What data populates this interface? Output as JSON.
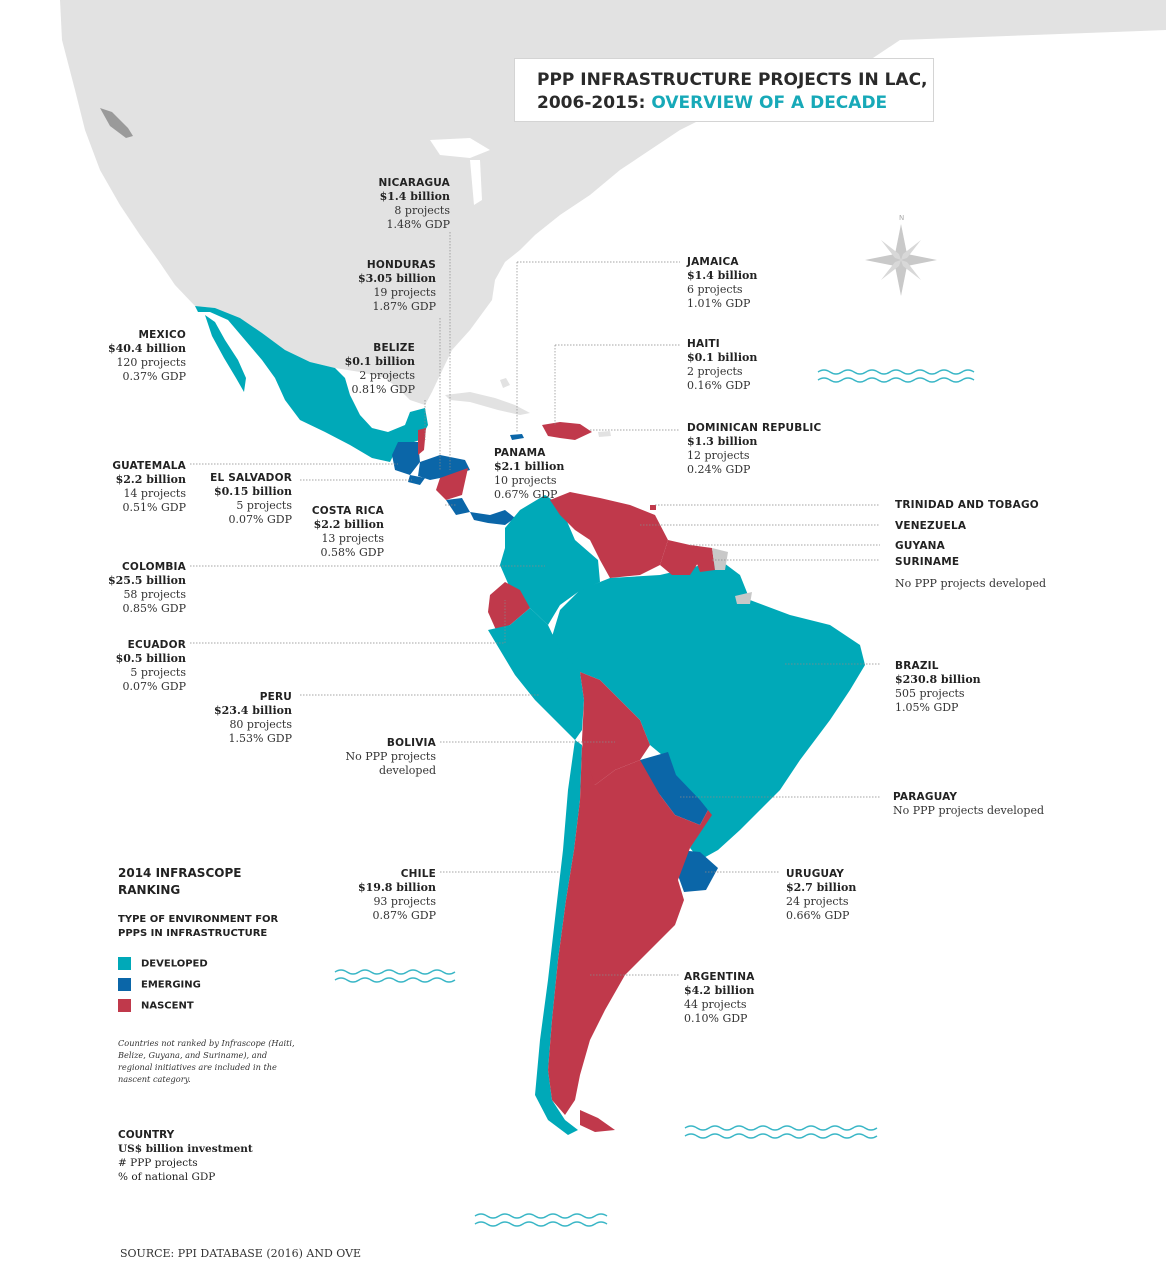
{
  "title": {
    "line1": "PPP INFRASTRUCTURE PROJECTS IN LAC,",
    "line2_plain": "2006-2015: ",
    "line2_accent": "OVERVIEW OF A DECADE"
  },
  "colors": {
    "developed": "#00a9b8",
    "emerging": "#0b66a8",
    "nascent": "#c0394b",
    "unranked": "#c8c8c8",
    "land": "#e2e2e2",
    "waves": "#39b6c6"
  },
  "compass": {
    "north": "N"
  },
  "countries": {
    "nicaragua": {
      "name": "NICARAGUA",
      "investment": "$1.4 billion",
      "projects": "8 projects",
      "gdp": "1.48% GDP"
    },
    "honduras": {
      "name": "HONDURAS",
      "investment": "$3.05 billion",
      "projects": "19 projects",
      "gdp": "1.87% GDP"
    },
    "mexico": {
      "name": "MEXICO",
      "investment": "$40.4 billion",
      "projects": "120 projects",
      "gdp": "0.37% GDP"
    },
    "belize": {
      "name": "BELIZE",
      "investment": "$0.1 billion",
      "projects": "2 projects",
      "gdp": "0.81% GDP"
    },
    "jamaica": {
      "name": "JAMAICA",
      "investment": "$1.4 billion",
      "projects": "6 projects",
      "gdp": "1.01% GDP"
    },
    "haiti": {
      "name": "HAITI",
      "investment": "$0.1 billion",
      "projects": "2 projects",
      "gdp": "0.16% GDP"
    },
    "dominican_republic": {
      "name": "DOMINICAN REPUBLIC",
      "investment": "$1.3 billion",
      "projects": "12 projects",
      "gdp": "0.24% GDP"
    },
    "guatemala": {
      "name": "GUATEMALA",
      "investment": "$2.2 billion",
      "projects": "14 projects",
      "gdp": "0.51% GDP"
    },
    "el_salvador": {
      "name": "EL SALVADOR",
      "investment": "$0.15 billion",
      "projects": "5 projects",
      "gdp": "0.07% GDP"
    },
    "panama": {
      "name": "PANAMA",
      "investment": "$2.1 billion",
      "projects": "10 projects",
      "gdp": "0.67% GDP"
    },
    "costa_rica": {
      "name": "COSTA RICA",
      "investment": "$2.2 billion",
      "projects": "13 projects",
      "gdp": "0.58% GDP"
    },
    "trinidad_and_tobago": {
      "name": "TRINIDAD AND TOBAGO"
    },
    "venezuela": {
      "name": "VENEZUELA"
    },
    "guyana": {
      "name": "GUYANA"
    },
    "suriname": {
      "name": "SURINAME",
      "note": "No PPP projects developed"
    },
    "colombia": {
      "name": "COLOMBIA",
      "investment": "$25.5 billion",
      "projects": "58 projects",
      "gdp": "0.85% GDP"
    },
    "ecuador": {
      "name": "ECUADOR",
      "investment": "$0.5 billion",
      "projects": "5 projects",
      "gdp": "0.07% GDP"
    },
    "brazil": {
      "name": "BRAZIL",
      "investment": "$230.8 billion",
      "projects": "505 projects",
      "gdp": "1.05% GDP"
    },
    "peru": {
      "name": "PERU",
      "investment": "$23.4 billion",
      "projects": "80 projects",
      "gdp": "1.53% GDP"
    },
    "bolivia": {
      "name": "BOLIVIA",
      "note1": "No PPP projects",
      "note2": "developed"
    },
    "paraguay": {
      "name": "PARAGUAY",
      "note": "No PPP projects developed"
    },
    "chile": {
      "name": "CHILE",
      "investment": "$19.8 billion",
      "projects": "93 projects",
      "gdp": "0.87% GDP"
    },
    "uruguay": {
      "name": "URUGUAY",
      "investment": "$2.7 billion",
      "projects": "24 projects",
      "gdp": "0.66% GDP"
    },
    "argentina": {
      "name": "ARGENTINA",
      "investment": "$4.2 billion",
      "projects": "44 projects",
      "gdp": "0.10% GDP"
    }
  },
  "legend": {
    "heading": "2014 INFRASCOPE RANKING",
    "subheading": "TYPE OF ENVIRONMENT FOR PPPS IN INFRASTRUCTURE",
    "items": [
      "DEVELOPED",
      "EMERGING",
      "NASCENT"
    ],
    "note": "Countries not ranked by Infrascope (Haiti, Belize, Guyana, and Suriname), and regional initiatives are included in the nascent category."
  },
  "country_key": {
    "line1": "COUNTRY",
    "line2": "US$ billion investment",
    "line3": "# PPP projects",
    "line4": "% of national GDP"
  },
  "source": "SOURCE: PPI DATABASE (2016) AND OVE"
}
